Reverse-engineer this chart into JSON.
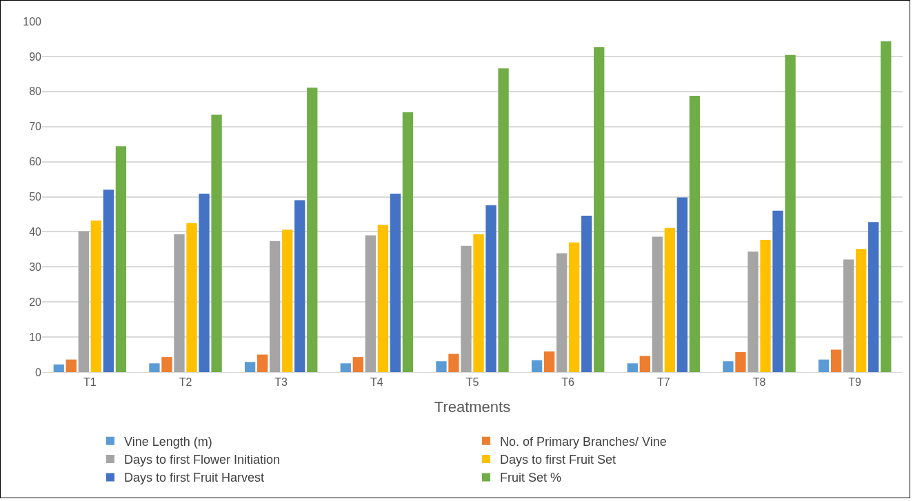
{
  "chart_data": {
    "type": "bar",
    "xlabel": "Treatments",
    "categories": [
      "T1",
      "T2",
      "T3",
      "T4",
      "T5",
      "T6",
      "T7",
      "T8",
      "T9"
    ],
    "series": [
      {
        "name": "Vine Length (m)",
        "color": "#5b9bd5",
        "values": [
          2.2,
          2.5,
          2.9,
          2.5,
          3.1,
          3.4,
          2.5,
          3.1,
          3.6
        ]
      },
      {
        "name": "No. of Primary Branches/ Vine",
        "color": "#ed7d31",
        "values": [
          3.6,
          4.3,
          5.0,
          4.3,
          5.2,
          5.9,
          4.6,
          5.7,
          6.4
        ]
      },
      {
        "name": "Days to first Flower Initiation",
        "color": "#a5a5a5",
        "values": [
          40.2,
          39.3,
          37.4,
          39.0,
          36.0,
          33.9,
          38.6,
          34.4,
          32.1
        ]
      },
      {
        "name": "Days to first Fruit Set",
        "color": "#ffc000",
        "values": [
          43.2,
          42.5,
          40.6,
          42.0,
          39.3,
          37.0,
          41.1,
          37.7,
          35.1
        ]
      },
      {
        "name": "Days to first Fruit Harvest",
        "color": "#4472c4",
        "values": [
          52.0,
          50.9,
          49.0,
          50.9,
          47.6,
          44.6,
          49.8,
          46.0,
          42.8
        ]
      },
      {
        "name": "Fruit Set %",
        "color": "#70ad47",
        "values": [
          64.4,
          73.4,
          81.1,
          74.1,
          86.6,
          92.7,
          78.8,
          90.4,
          94.3
        ]
      }
    ],
    "ylim": [
      0,
      100
    ],
    "yticks": [
      0,
      10,
      20,
      30,
      40,
      50,
      60,
      70,
      80,
      90,
      100
    ],
    "grid": "y",
    "legend": "bottom"
  }
}
